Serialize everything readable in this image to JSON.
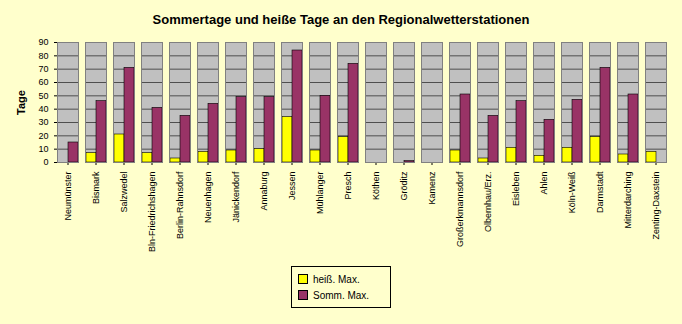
{
  "chart_data": {
    "type": "bar",
    "title": "Sommertage und heiße Tage an den Regionalwetterstationen",
    "y_label": "Tage",
    "categories": [
      "Neumünster",
      "Bismark",
      "Salzwedel",
      "Bln-Friedrichshagen",
      "Berlin-Rahnsdorf",
      "Neuenhagen",
      "Jänickendorf",
      "Annaburg",
      "Jessen",
      "Mühlanger",
      "Presch",
      "Köthen",
      "Gröditz",
      "Kamenz",
      "Großerkmannsdorf",
      "Olbernhau/Erz.",
      "Eisleben",
      "Ahlen",
      "Köln-Weiß",
      "Darmstadt",
      "Mitterdarching",
      "Zenting-Daxstein"
    ],
    "series": [
      {
        "name": "heiß. Max.",
        "color": "#ffff00",
        "values": [
          null,
          7,
          21,
          7,
          3,
          8,
          9,
          10,
          34,
          9,
          19,
          null,
          null,
          null,
          9,
          3,
          11,
          5,
          11,
          19,
          6,
          8
        ]
      },
      {
        "name": "Somm. Max.",
        "color": "#993366",
        "values": [
          15,
          46,
          71,
          41,
          35,
          44,
          49,
          49,
          84,
          50,
          74,
          null,
          1,
          null,
          51,
          35,
          46,
          32,
          47,
          71,
          51,
          null
        ]
      }
    ],
    "ylim": [
      0,
      90
    ],
    "yticks": [
      0,
      10,
      20,
      30,
      40,
      50,
      60,
      70,
      80,
      90
    ],
    "grid": true,
    "legend": "bottom"
  }
}
